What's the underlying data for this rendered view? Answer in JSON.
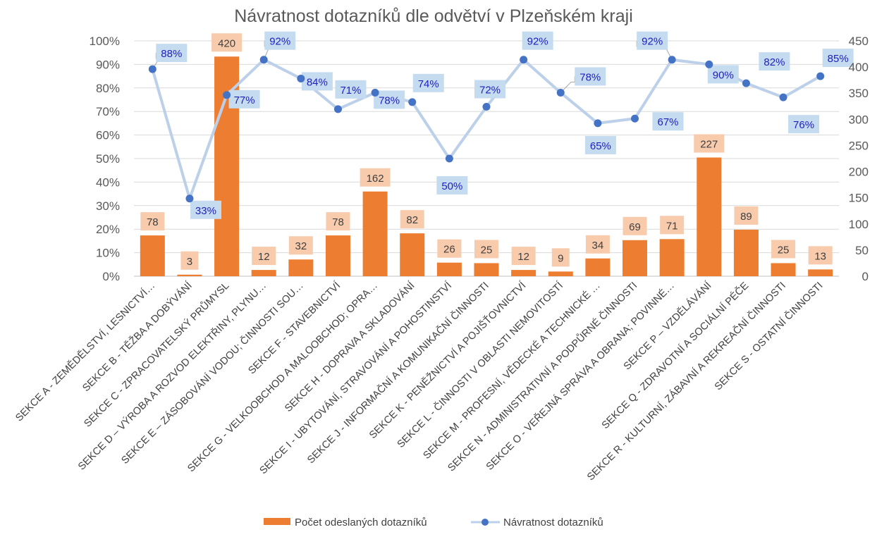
{
  "chart_data": {
    "type": "bar+line",
    "title": "Návratnost dotazníků dle odvětví v Plzeňském kraji",
    "categories": [
      "SEKCE A - ZEMĚDĚLSTVÍ, LESNICTVÍ…",
      "SEKCE B - TĚŽBA A DOBÝVÁNÍ",
      "SEKCE C - ZPRACOVATELSKÝ PRŮMYSL",
      "SEKCE D – VÝROBA A ROZVOD ELEKTŘINY, PLYNU…",
      "SEKCE E – ZÁSOBOVÁNÍ VODOU; ČINNOSTI SOU…",
      "SEKCE F - STAVEBNICTVÍ",
      "SEKCE G - VELKOOBCHOD A MALOOBCHOD; OPRA…",
      "SEKCE H - DOPRAVA A SKLADOVÁNÍ",
      "SEKCE I - UBYTOVÁNÍ, STRAVOVÁNÍ A POHOSTINSTVÍ",
      "SEKCE J - INFORMAČNÍ A KOMUNIKAČNÍ ČINNOSTI",
      "SEKCE K - PENĚŽNICTVÍ A POJIŠŤOVNICTVÍ",
      "SEKCE L - ČINNOSTI V OBLASTI NEMOVITOSTÍ",
      "SEKCE M - PROFESNÍ, VĚDECKÉ A TECHNICKÉ …",
      "SEKCE N - ADMINISTRATIVNÍ A PODPŮRNÉ ČINNOSTI",
      "SEKCE O - VEŘEJNÁ SPRÁVA A OBRANA; POVINNÉ…",
      "SEKCE P – VZDĚLÁVÁNÍ",
      "SEKCE Q - ZDRAVOTNÍ A SOCIÁLNÍ PÉČE",
      "SEKCE R - KULTURNÍ, ZÁBAVNÍ A REKREAČNÍ ČINNOSTI",
      "SEKCE S - OSTATNÍ ČINNOSTI"
    ],
    "series": [
      {
        "name": "Počet odeslaných dotazníků",
        "type": "bar",
        "axis": "right",
        "color": "#ED7D31",
        "values": [
          78,
          3,
          420,
          12,
          32,
          78,
          162,
          82,
          26,
          25,
          12,
          9,
          34,
          69,
          71,
          227,
          89,
          25,
          13
        ],
        "labels": [
          "78",
          "3",
          "420",
          "12",
          "32",
          "78",
          "162",
          "82",
          "26",
          "25",
          "12",
          "9",
          "34",
          "69",
          "71",
          "227",
          "89",
          "25",
          "13"
        ]
      },
      {
        "name": "Návratnost dotazníků",
        "type": "line",
        "axis": "left",
        "color": "#4472C4",
        "line_color": "#BDD0EA",
        "values": [
          88,
          33,
          77,
          92,
          84,
          71,
          78,
          74,
          50,
          72,
          92,
          78,
          65,
          67,
          92,
          90,
          82,
          76,
          85
        ],
        "labels": [
          "88%",
          "33%",
          "77%",
          "92%",
          "84%",
          "71%",
          "78%",
          "74%",
          "50%",
          "72%",
          "92%",
          "78%",
          "65%",
          "67%",
          "92%",
          "90%",
          "82%",
          "76%",
          "85%"
        ]
      }
    ],
    "y_left": {
      "ylim": [
        0,
        100
      ],
      "ticks": [
        "0%",
        "10%",
        "20%",
        "30%",
        "40%",
        "50%",
        "60%",
        "70%",
        "80%",
        "90%",
        "100%"
      ]
    },
    "y_right": {
      "ylim": [
        0,
        450
      ],
      "ticks": [
        "0",
        "50",
        "100",
        "150",
        "200",
        "250",
        "300",
        "350",
        "400",
        "450"
      ]
    },
    "grid": true,
    "legend_position": "bottom"
  }
}
